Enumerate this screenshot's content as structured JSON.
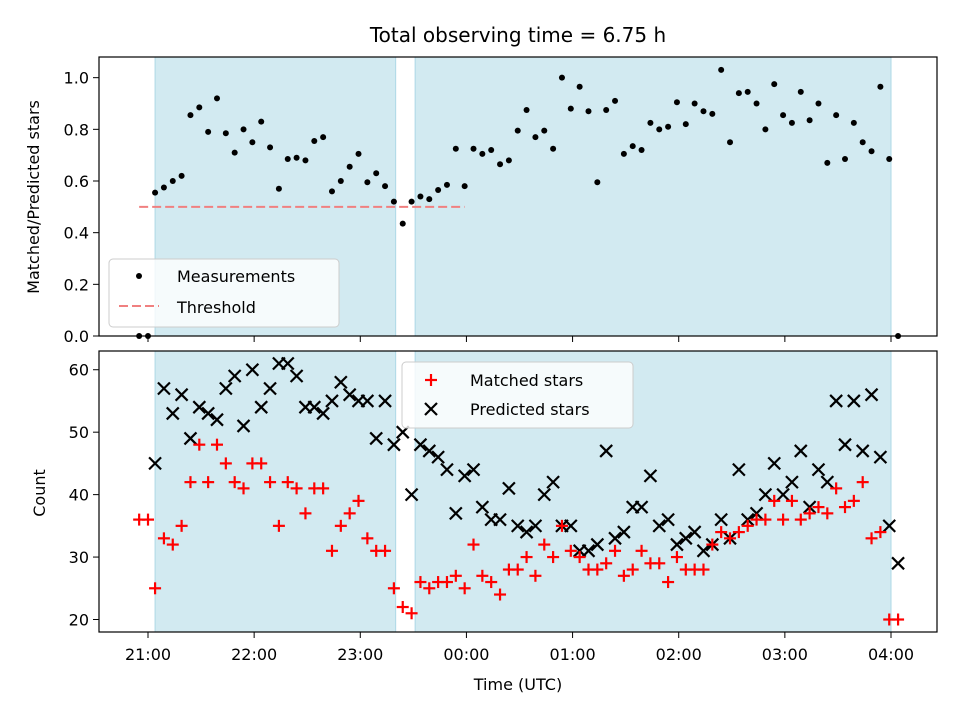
{
  "chart_data": {
    "title": "Total observing time = 6.75 h",
    "xlabel": "Time (UTC)",
    "x_ticks": [
      "21:00",
      "22:00",
      "23:00",
      "00:00",
      "01:00",
      "02:00",
      "03:00",
      "04:00"
    ],
    "colors": {
      "shade": "#add8e6",
      "measurements": "#000000",
      "threshold": "#f08080",
      "matched": "#ff0000",
      "predicted": "#000000"
    },
    "shaded_intervals": [
      [
        "21:04",
        "23:20"
      ],
      [
        "23:31",
        "04:00"
      ]
    ],
    "top": {
      "type": "scatter",
      "ylabel": "Matched/Predicted stars",
      "ylim": [
        0,
        1.08
      ],
      "y_ticks": [
        "0.0",
        "0.2",
        "0.4",
        "0.6",
        "0.8",
        "1.0"
      ],
      "legend": {
        "placement": "lower-left",
        "measurements": "Measurements",
        "threshold": "Threshold"
      },
      "threshold_value": 0.5,
      "threshold_x": [
        "20:55",
        "23:59"
      ],
      "measurements": [
        [
          "20:55",
          0.0
        ],
        [
          "21:00",
          0.0
        ],
        [
          "21:04",
          0.555
        ],
        [
          "21:09",
          0.575
        ],
        [
          "21:14",
          0.6
        ],
        [
          "21:19",
          0.62
        ],
        [
          "21:24",
          0.855
        ],
        [
          "21:29",
          0.885
        ],
        [
          "21:34",
          0.79
        ],
        [
          "21:39",
          0.92
        ],
        [
          "21:44",
          0.785
        ],
        [
          "21:49",
          0.71
        ],
        [
          "21:54",
          0.8
        ],
        [
          "21:59",
          0.75
        ],
        [
          "22:04",
          0.83
        ],
        [
          "22:09",
          0.73
        ],
        [
          "22:14",
          0.57
        ],
        [
          "22:19",
          0.685
        ],
        [
          "22:24",
          0.69
        ],
        [
          "22:29",
          0.68
        ],
        [
          "22:34",
          0.755
        ],
        [
          "22:39",
          0.77
        ],
        [
          "22:44",
          0.56
        ],
        [
          "22:49",
          0.6
        ],
        [
          "22:54",
          0.655
        ],
        [
          "22:59",
          0.705
        ],
        [
          "23:04",
          0.595
        ],
        [
          "23:09",
          0.63
        ],
        [
          "23:14",
          0.58
        ],
        [
          "23:19",
          0.52
        ],
        [
          "23:24",
          0.435
        ],
        [
          "23:29",
          0.52
        ],
        [
          "23:34",
          0.54
        ],
        [
          "23:39",
          0.53
        ],
        [
          "23:44",
          0.565
        ],
        [
          "23:49",
          0.585
        ],
        [
          "23:54",
          0.725
        ],
        [
          "23:59",
          0.58
        ],
        [
          "00:04",
          0.725
        ],
        [
          "00:09",
          0.705
        ],
        [
          "00:14",
          0.72
        ],
        [
          "00:19",
          0.665
        ],
        [
          "00:24",
          0.68
        ],
        [
          "00:29",
          0.795
        ],
        [
          "00:34",
          0.875
        ],
        [
          "00:39",
          0.77
        ],
        [
          "00:44",
          0.795
        ],
        [
          "00:49",
          0.725
        ],
        [
          "00:54",
          1.0
        ],
        [
          "00:59",
          0.88
        ],
        [
          "01:04",
          0.965
        ],
        [
          "01:09",
          0.87
        ],
        [
          "01:14",
          0.595
        ],
        [
          "01:19",
          0.875
        ],
        [
          "01:24",
          0.91
        ],
        [
          "01:29",
          0.705
        ],
        [
          "01:34",
          0.735
        ],
        [
          "01:39",
          0.72
        ],
        [
          "01:44",
          0.825
        ],
        [
          "01:49",
          0.8
        ],
        [
          "01:54",
          0.81
        ],
        [
          "01:59",
          0.905
        ],
        [
          "02:04",
          0.82
        ],
        [
          "02:09",
          0.9
        ],
        [
          "02:14",
          0.87
        ],
        [
          "02:19",
          0.86
        ],
        [
          "02:24",
          1.03
        ],
        [
          "02:29",
          0.75
        ],
        [
          "02:34",
          0.94
        ],
        [
          "02:39",
          0.945
        ],
        [
          "02:44",
          0.9
        ],
        [
          "02:49",
          0.8
        ],
        [
          "02:54",
          0.975
        ],
        [
          "02:59",
          0.855
        ],
        [
          "03:04",
          0.825
        ],
        [
          "03:09",
          0.945
        ],
        [
          "03:14",
          0.835
        ],
        [
          "03:19",
          0.9
        ],
        [
          "03:24",
          0.67
        ],
        [
          "03:29",
          0.855
        ],
        [
          "03:34",
          0.685
        ],
        [
          "03:39",
          0.825
        ],
        [
          "03:44",
          0.75
        ],
        [
          "03:49",
          0.715
        ],
        [
          "03:54",
          0.965
        ],
        [
          "03:59",
          0.685
        ],
        [
          "04:04",
          0.0
        ]
      ]
    },
    "bottom": {
      "type": "scatter",
      "ylabel": "Count",
      "ylim": [
        18,
        63
      ],
      "y_ticks": [
        "20",
        "30",
        "40",
        "50",
        "60"
      ],
      "legend": {
        "placement": "upper-center",
        "matched": "Matched stars",
        "predicted": "Predicted stars"
      },
      "matched": [
        [
          "20:55",
          36
        ],
        [
          "21:00",
          36
        ],
        [
          "21:04",
          25
        ],
        [
          "21:09",
          33
        ],
        [
          "21:14",
          32
        ],
        [
          "21:19",
          35
        ],
        [
          "21:24",
          42
        ],
        [
          "21:29",
          48
        ],
        [
          "21:34",
          42
        ],
        [
          "21:39",
          48
        ],
        [
          "21:44",
          45
        ],
        [
          "21:49",
          42
        ],
        [
          "21:54",
          41
        ],
        [
          "21:59",
          45
        ],
        [
          "22:04",
          45
        ],
        [
          "22:09",
          42
        ],
        [
          "22:14",
          35
        ],
        [
          "22:19",
          42
        ],
        [
          "22:24",
          41
        ],
        [
          "22:29",
          37
        ],
        [
          "22:34",
          41
        ],
        [
          "22:39",
          41
        ],
        [
          "22:44",
          31
        ],
        [
          "22:49",
          35
        ],
        [
          "22:54",
          37
        ],
        [
          "22:59",
          39
        ],
        [
          "23:04",
          33
        ],
        [
          "23:09",
          31
        ],
        [
          "23:14",
          31
        ],
        [
          "23:19",
          25
        ],
        [
          "23:24",
          22
        ],
        [
          "23:29",
          21
        ],
        [
          "23:34",
          26
        ],
        [
          "23:39",
          25
        ],
        [
          "23:44",
          26
        ],
        [
          "23:49",
          26
        ],
        [
          "23:54",
          27
        ],
        [
          "23:59",
          25
        ],
        [
          "00:04",
          32
        ],
        [
          "00:09",
          27
        ],
        [
          "00:14",
          26
        ],
        [
          "00:19",
          24
        ],
        [
          "00:24",
          28
        ],
        [
          "00:29",
          28
        ],
        [
          "00:34",
          30
        ],
        [
          "00:39",
          27
        ],
        [
          "00:44",
          32
        ],
        [
          "00:49",
          30
        ],
        [
          "00:54",
          35
        ],
        [
          "00:59",
          31
        ],
        [
          "01:04",
          30
        ],
        [
          "01:09",
          28
        ],
        [
          "01:14",
          28
        ],
        [
          "01:19",
          29
        ],
        [
          "01:24",
          31
        ],
        [
          "01:29",
          27
        ],
        [
          "01:34",
          28
        ],
        [
          "01:39",
          31
        ],
        [
          "01:44",
          29
        ],
        [
          "01:49",
          29
        ],
        [
          "01:54",
          26
        ],
        [
          "01:59",
          30
        ],
        [
          "02:04",
          28
        ],
        [
          "02:09",
          28
        ],
        [
          "02:14",
          28
        ],
        [
          "02:19",
          32
        ],
        [
          "02:24",
          34
        ],
        [
          "02:29",
          33
        ],
        [
          "02:34",
          34
        ],
        [
          "02:39",
          35
        ],
        [
          "02:44",
          36
        ],
        [
          "02:49",
          36
        ],
        [
          "02:54",
          39
        ],
        [
          "02:59",
          36
        ],
        [
          "03:04",
          39
        ],
        [
          "03:09",
          36
        ],
        [
          "03:14",
          37
        ],
        [
          "03:19",
          38
        ],
        [
          "03:24",
          37
        ],
        [
          "03:29",
          41
        ],
        [
          "03:34",
          38
        ],
        [
          "03:39",
          39
        ],
        [
          "03:44",
          42
        ],
        [
          "03:49",
          33
        ],
        [
          "03:54",
          34
        ],
        [
          "03:59",
          20
        ],
        [
          "04:04",
          20
        ]
      ],
      "predicted": [
        [
          "21:04",
          45
        ],
        [
          "21:09",
          57
        ],
        [
          "21:14",
          53
        ],
        [
          "21:19",
          56
        ],
        [
          "21:24",
          49
        ],
        [
          "21:29",
          54
        ],
        [
          "21:34",
          53
        ],
        [
          "21:39",
          52
        ],
        [
          "21:44",
          57
        ],
        [
          "21:49",
          59
        ],
        [
          "21:54",
          51
        ],
        [
          "21:59",
          60
        ],
        [
          "22:04",
          54
        ],
        [
          "22:09",
          57
        ],
        [
          "22:14",
          61
        ],
        [
          "22:19",
          61
        ],
        [
          "22:24",
          59
        ],
        [
          "22:29",
          54
        ],
        [
          "22:34",
          54
        ],
        [
          "22:39",
          53
        ],
        [
          "22:44",
          55
        ],
        [
          "22:49",
          58
        ],
        [
          "22:54",
          56
        ],
        [
          "22:59",
          55
        ],
        [
          "23:04",
          55
        ],
        [
          "23:09",
          49
        ],
        [
          "23:14",
          55
        ],
        [
          "23:19",
          48
        ],
        [
          "23:24",
          50
        ],
        [
          "23:29",
          40
        ],
        [
          "23:34",
          48
        ],
        [
          "23:39",
          47
        ],
        [
          "23:44",
          46
        ],
        [
          "23:49",
          44
        ],
        [
          "23:54",
          37
        ],
        [
          "23:59",
          43
        ],
        [
          "00:04",
          44
        ],
        [
          "00:09",
          38
        ],
        [
          "00:14",
          36
        ],
        [
          "00:19",
          36
        ],
        [
          "00:24",
          41
        ],
        [
          "00:29",
          35
        ],
        [
          "00:34",
          34
        ],
        [
          "00:39",
          35
        ],
        [
          "00:44",
          40
        ],
        [
          "00:49",
          42
        ],
        [
          "00:54",
          35
        ],
        [
          "00:59",
          35
        ],
        [
          "01:04",
          31
        ],
        [
          "01:09",
          31
        ],
        [
          "01:14",
          32
        ],
        [
          "01:19",
          47
        ],
        [
          "01:24",
          33
        ],
        [
          "01:29",
          34
        ],
        [
          "01:34",
          38
        ],
        [
          "01:39",
          38
        ],
        [
          "01:44",
          43
        ],
        [
          "01:49",
          35
        ],
        [
          "01:54",
          36
        ],
        [
          "01:59",
          32
        ],
        [
          "02:04",
          33
        ],
        [
          "02:09",
          34
        ],
        [
          "02:14",
          31
        ],
        [
          "02:19",
          32
        ],
        [
          "02:24",
          36
        ],
        [
          "02:29",
          33
        ],
        [
          "02:34",
          44
        ],
        [
          "02:39",
          36
        ],
        [
          "02:44",
          37
        ],
        [
          "02:49",
          40
        ],
        [
          "02:54",
          45
        ],
        [
          "02:59",
          40
        ],
        [
          "03:04",
          42
        ],
        [
          "03:09",
          47
        ],
        [
          "03:14",
          38
        ],
        [
          "03:19",
          44
        ],
        [
          "03:24",
          42
        ],
        [
          "03:29",
          55
        ],
        [
          "03:34",
          48
        ],
        [
          "03:39",
          55
        ],
        [
          "03:44",
          47
        ],
        [
          "03:49",
          56
        ],
        [
          "03:54",
          46
        ],
        [
          "03:59",
          35
        ],
        [
          "04:04",
          29
        ]
      ]
    }
  }
}
